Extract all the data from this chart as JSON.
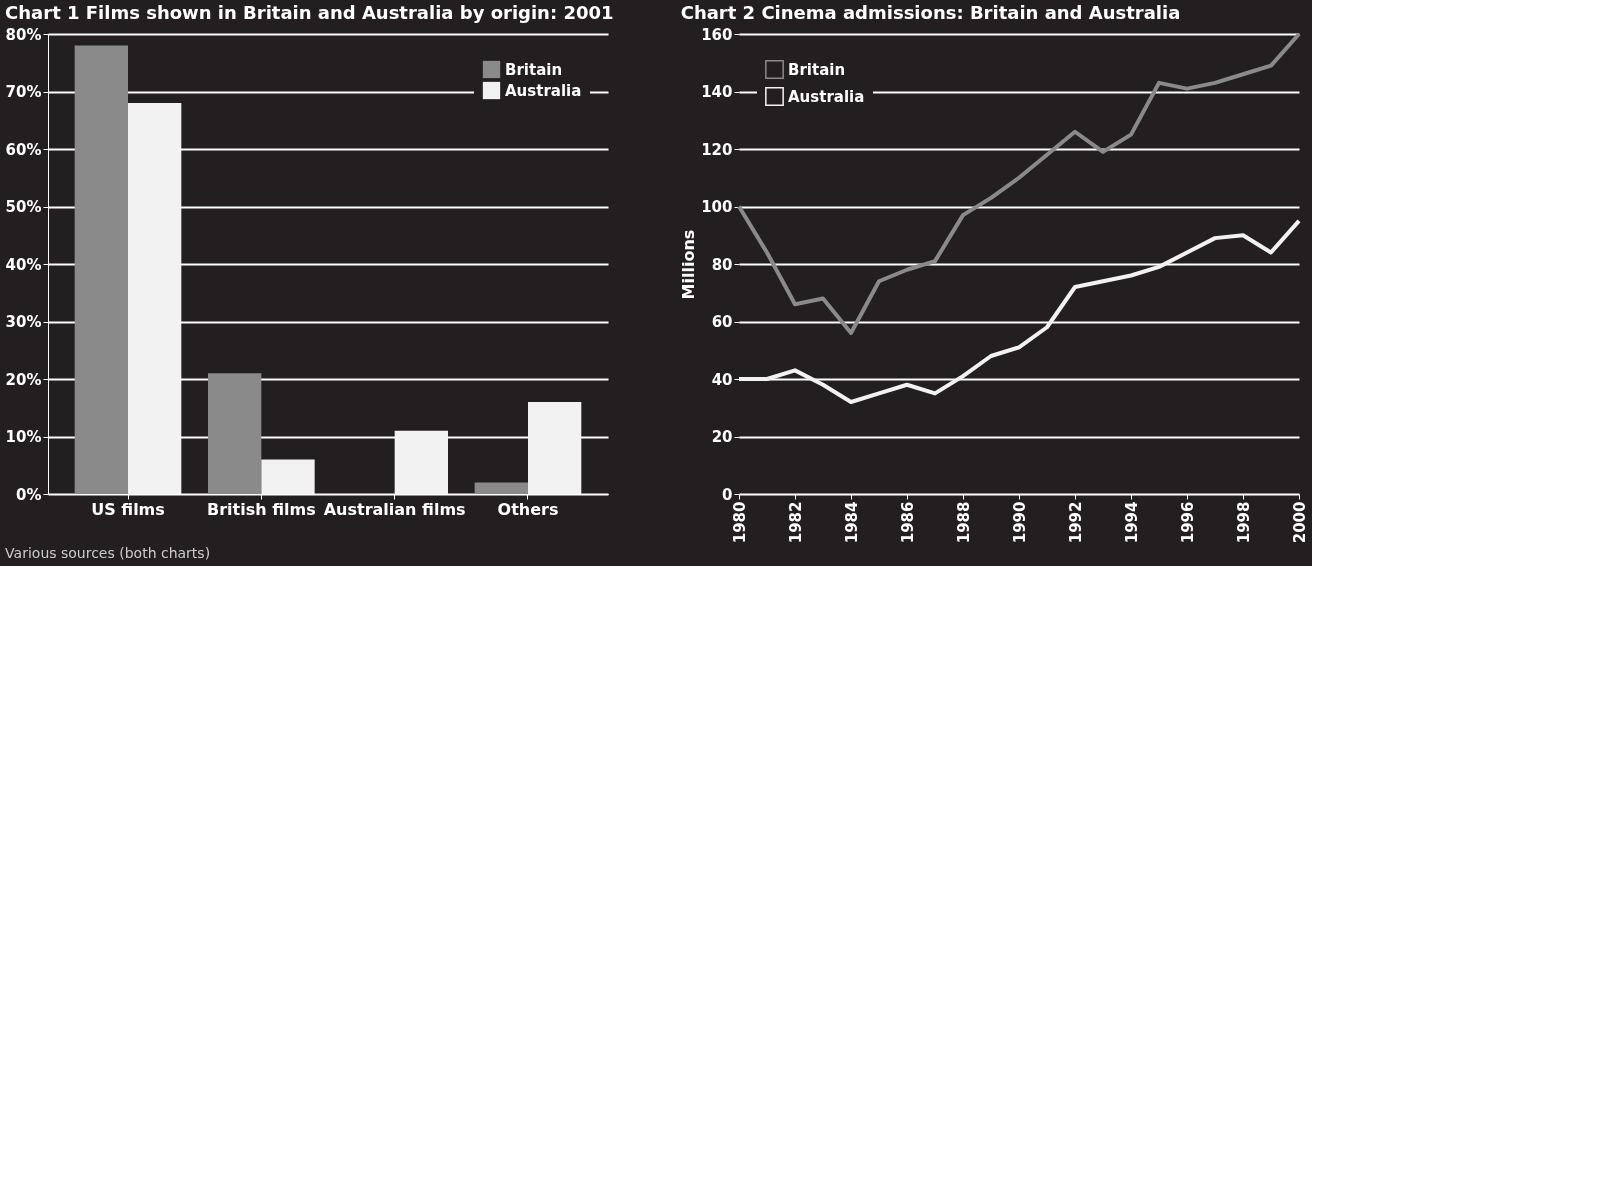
{
  "chart_data": [
    {
      "type": "bar",
      "title": "Chart 1  Films shown in Britain and Australia by origin: 2001",
      "categories": [
        "US films",
        "British films",
        "Australian films",
        "Others"
      ],
      "series": [
        {
          "name": "Britain",
          "color": "#8a8a8a",
          "values": [
            78,
            21,
            0,
            2
          ]
        },
        {
          "name": "Australia",
          "color": "#f2f2f2",
          "values": [
            68,
            6,
            11,
            16
          ]
        }
      ],
      "ylim": [
        0,
        80
      ],
      "yticks": [
        {
          "value": 0,
          "label": "0%"
        },
        {
          "value": 10,
          "label": "10%"
        },
        {
          "value": 20,
          "label": "20%"
        },
        {
          "value": 30,
          "label": "30%"
        },
        {
          "value": 40,
          "label": "40%"
        },
        {
          "value": 50,
          "label": "50%"
        },
        {
          "value": 60,
          "label": "60%"
        },
        {
          "value": 70,
          "label": "70%"
        },
        {
          "value": 80,
          "label": "80%"
        }
      ],
      "grid": "y",
      "legend": "top right",
      "annotations": [
        "Various sources (both charts)"
      ]
    },
    {
      "type": "line",
      "title": "Chart 2  Cinema admissions: Britain and Australia",
      "ylabel": "Millions",
      "x": [
        1980,
        1981,
        1982,
        1983,
        1984,
        1985,
        1986,
        1987,
        1988,
        1989,
        1990,
        1991,
        1992,
        1993,
        1994,
        1995,
        1996,
        1997,
        1998,
        1999,
        2000
      ],
      "series": [
        {
          "name": "Britain",
          "color": "#8a8a8a",
          "values": [
            100,
            84,
            66,
            68,
            56,
            74,
            78,
            81,
            97,
            103,
            110,
            118,
            126,
            119,
            125,
            143,
            141,
            143,
            146,
            149,
            160
          ]
        },
        {
          "name": "Australia",
          "color": "#f2f2f2",
          "values": [
            40,
            40,
            43,
            38,
            32,
            35,
            38,
            35,
            41,
            48,
            51,
            58,
            72,
            74,
            76,
            79,
            84,
            89,
            90,
            84,
            95
          ]
        }
      ],
      "xlim": [
        1980,
        2000
      ],
      "xticks": [
        1980,
        1982,
        1984,
        1986,
        1988,
        1990,
        1992,
        1994,
        1996,
        1998,
        2000
      ],
      "ylim": [
        0,
        160
      ],
      "yticks": [
        0,
        20,
        40,
        60,
        80,
        100,
        120,
        140,
        160
      ],
      "grid": "y",
      "legend": "top left",
      "marker": "none",
      "line_style": "solid"
    }
  ]
}
